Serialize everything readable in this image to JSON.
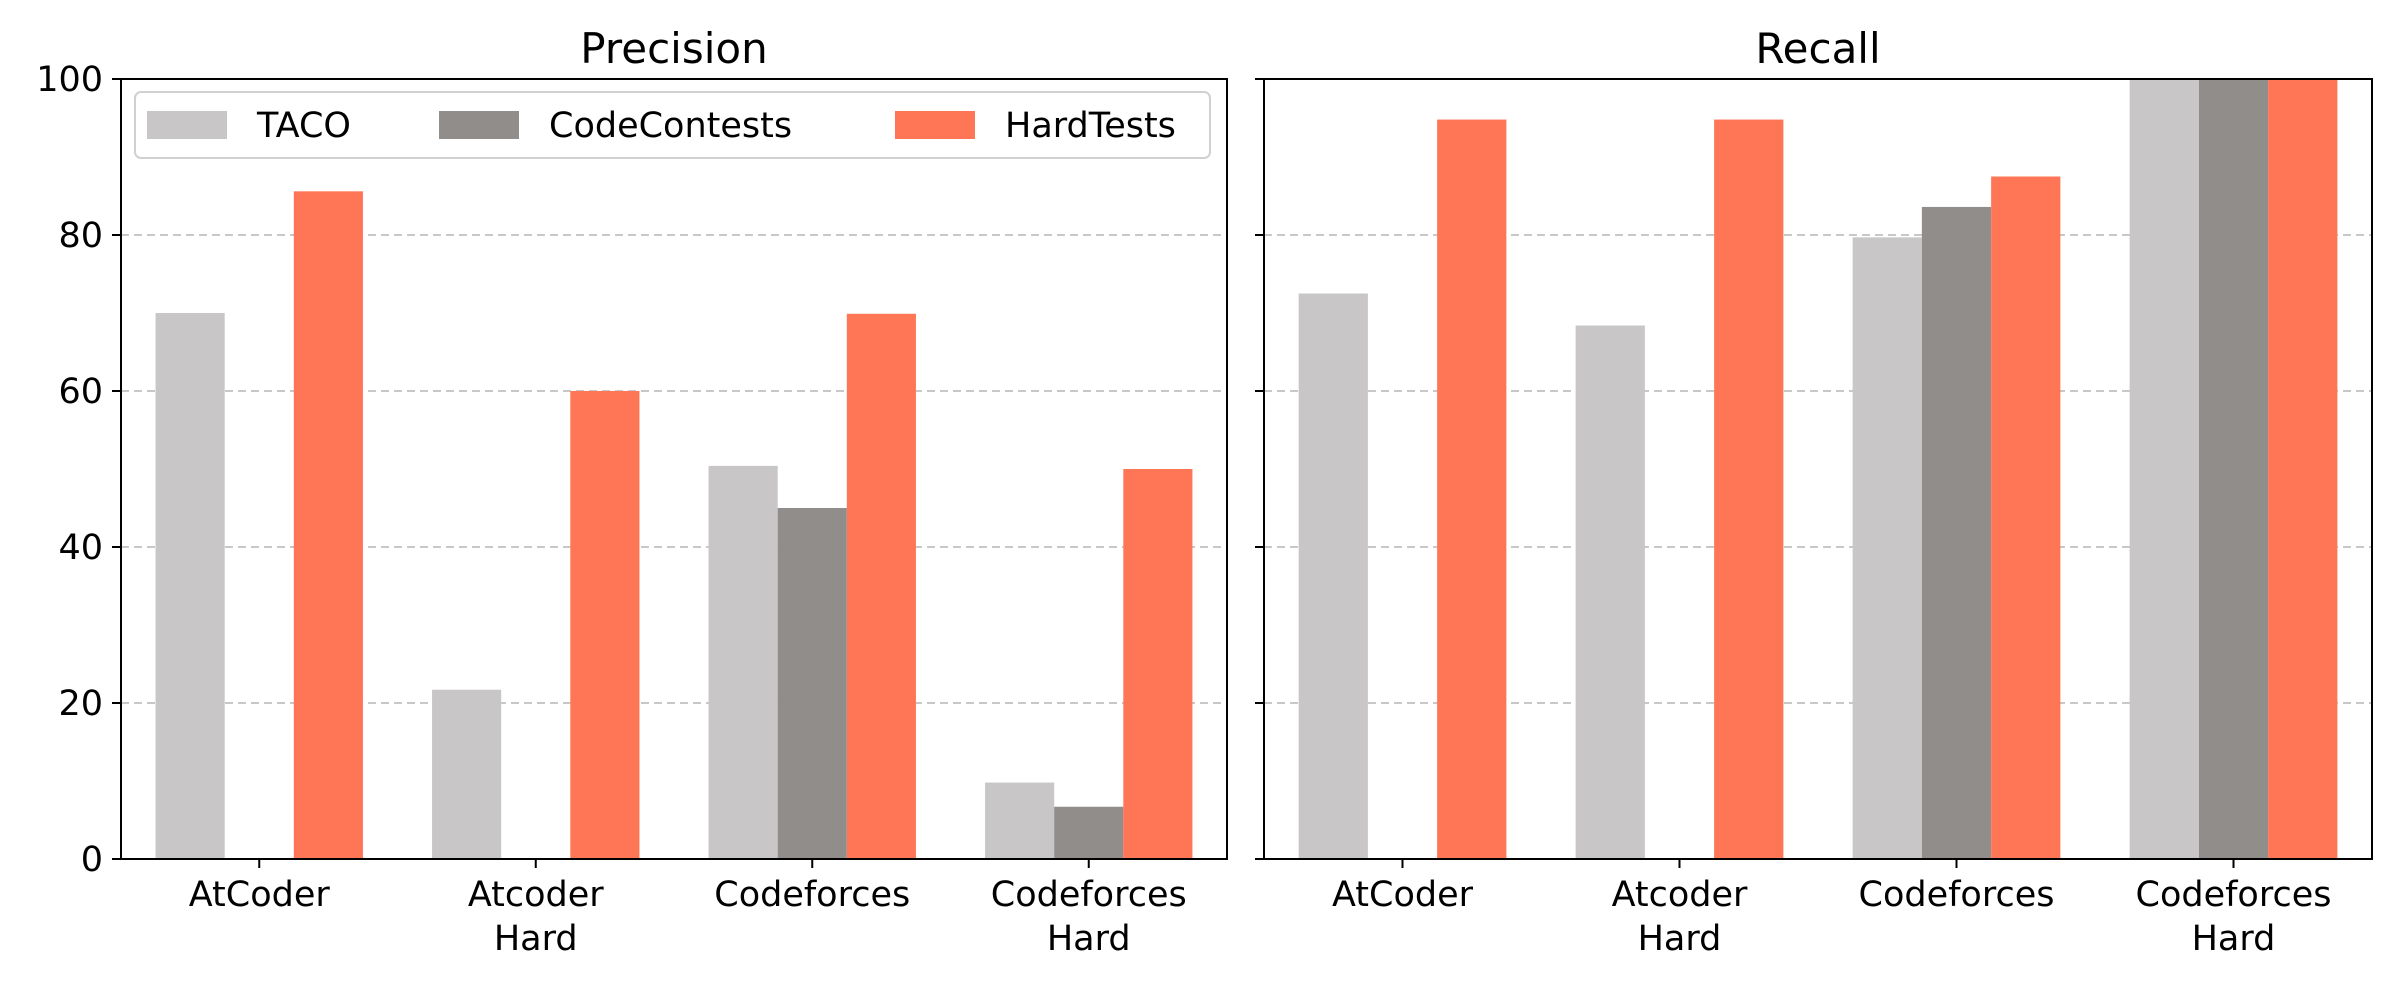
{
  "chart_data": [
    {
      "type": "bar",
      "title": "Precision",
      "categories": [
        "AtCoder",
        "Atcoder\nHard",
        "Codeforces",
        "Codeforces\nHard"
      ],
      "series": [
        {
          "name": "TACO",
          "values": [
            70.0,
            21.7,
            50.4,
            9.8
          ]
        },
        {
          "name": "CodeContests",
          "values": [
            null,
            null,
            45.0,
            6.7
          ]
        },
        {
          "name": "HardTests",
          "values": [
            85.6,
            60.0,
            69.9,
            50.0
          ]
        }
      ],
      "ylim": [
        0,
        100
      ],
      "yticks": [
        0,
        20,
        40,
        60,
        80,
        100
      ],
      "grid": "y-dashed",
      "legend": "top"
    },
    {
      "type": "bar",
      "title": "Recall",
      "categories": [
        "AtCoder",
        "Atcoder\nHard",
        "Codeforces",
        "Codeforces\nHard"
      ],
      "series": [
        {
          "name": "TACO",
          "values": [
            72.5,
            68.4,
            79.7,
            100.0
          ]
        },
        {
          "name": "CodeContests",
          "values": [
            null,
            null,
            83.6,
            100.0
          ]
        },
        {
          "name": "HardTests",
          "values": [
            94.8,
            94.8,
            87.5,
            100.0
          ]
        }
      ],
      "ylim": [
        0,
        100
      ],
      "yticks": [
        0,
        20,
        40,
        60,
        80,
        100
      ],
      "grid": "y-dashed"
    }
  ],
  "colors": {
    "TACO": "#c8c6c6",
    "CodeContests": "#908d8b",
    "HardTests": "#ff7656",
    "grid": "#c8c8c8",
    "axis": "#000000"
  }
}
